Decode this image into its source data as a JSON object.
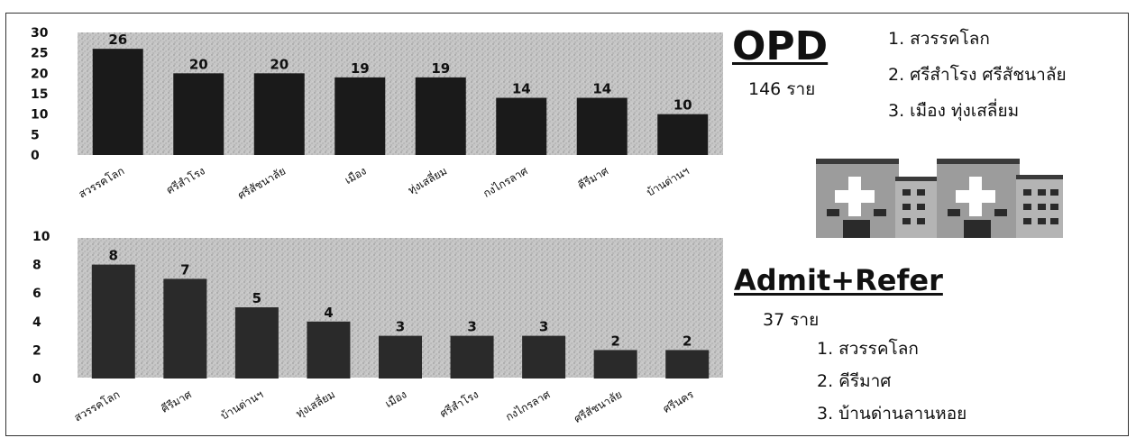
{
  "chart_data": [
    {
      "type": "bar",
      "categories": [
        "สวรรคโลก",
        "ศรีสำโรง",
        "ศรีสัชนาลัย",
        "เมือง",
        "ทุ่งเสลี่ยม",
        "กงไกรลาศ",
        "คีรีมาศ",
        "บ้านด่านฯ"
      ],
      "values": [
        26,
        20,
        20,
        19,
        19,
        14,
        14,
        10
      ],
      "bar_labels": [
        "26",
        "20",
        "20",
        "19",
        "19",
        "14",
        "14",
        "10"
      ],
      "ylim": [
        0,
        30
      ],
      "yticks": [
        "0",
        "5",
        "10",
        "15",
        "20",
        "25",
        "30"
      ],
      "grid": false
    },
    {
      "type": "bar",
      "categories": [
        "สวรรคโลก",
        "คีรีมาศ",
        "บ้านด่านฯ",
        "ทุ่งเสลี่ยม",
        "เมือง",
        "ศรีสำโรง",
        "กงไกรลาศ",
        "ศรีสัชนาลัย",
        "ศรีนคร"
      ],
      "values": [
        8,
        7,
        5,
        4,
        3,
        3,
        3,
        2,
        2
      ],
      "bar_labels": [
        "8",
        "7",
        "5",
        "4",
        "3",
        "3",
        "3",
        "2",
        "2"
      ],
      "ylim": [
        0,
        10
      ],
      "yticks": [
        "0",
        "2",
        "4",
        "6",
        "8",
        "10"
      ],
      "grid": false
    }
  ],
  "opd": {
    "title": "OPD",
    "count": "146 ราย",
    "ranking": [
      "1. สวรรคโลก",
      "2. ศรีสำโรง ศรีสัชนาลัย",
      "3. เมือง ทุ่งเสลี่ยม"
    ]
  },
  "admit": {
    "title": "Admit+Refer",
    "count": "37  ราย",
    "ranking": [
      "1. สวรรคโลก",
      "2. คีรีมาศ",
      "3. บ้านด่านลานหอย"
    ]
  },
  "colors": {
    "bar_top": "#1a1a1a",
    "bar_bottom": "#2a2a2a",
    "plot_bg": "#c2c2c2"
  },
  "icons": {
    "building": "hospital-building-icon"
  }
}
